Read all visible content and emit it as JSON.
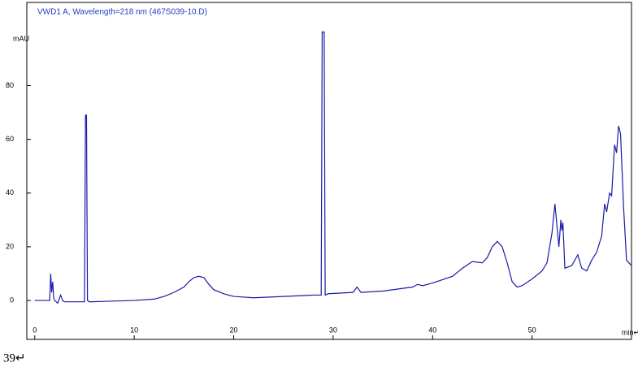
{
  "chart_data": {
    "type": "line",
    "title": "VWD1 A, Wavelength=218 nm (467S039-10.D)",
    "y_label": "mAU",
    "x_label": "min↵",
    "caption": "39↵",
    "x": [
      0,
      1.5,
      1.6,
      1.7,
      1.8,
      1.9,
      2.0,
      2.3,
      2.6,
      2.8,
      3.0,
      5.0,
      5.1,
      5.2,
      5.3,
      5.5,
      10,
      12,
      13,
      14,
      15,
      15.5,
      16,
      16.5,
      17,
      17.5,
      18,
      19,
      20,
      22,
      25,
      28,
      28.8,
      28.9,
      29.0,
      29.1,
      29.2,
      29.5,
      32,
      32.4,
      32.8,
      35,
      38,
      38.5,
      39,
      40,
      42,
      43,
      44,
      45,
      45.5,
      46,
      46.5,
      47,
      47.5,
      48,
      48.5,
      49,
      50,
      51,
      51.5,
      52,
      52.3,
      52.5,
      52.7,
      52.9,
      53.0,
      53.1,
      53.3,
      54,
      54.6,
      55,
      55.5,
      56,
      56.5,
      57,
      57.3,
      57.5,
      57.8,
      58,
      58.3,
      58.5,
      58.7,
      58.9,
      59.2,
      59.5,
      60
    ],
    "series": [
      {
        "name": "VWD1 A",
        "color": "#1a1aa8",
        "values": [
          0,
          0,
          10,
          3,
          7,
          1,
          0,
          -1,
          2,
          0,
          -0.5,
          -0.5,
          69,
          69,
          0,
          -0.5,
          0,
          0.5,
          1.5,
          3,
          5,
          7,
          8.5,
          9,
          8.5,
          6,
          4,
          2.5,
          1.5,
          1,
          1.5,
          2,
          2,
          100,
          100,
          100,
          2,
          2.5,
          3,
          5,
          3,
          3.5,
          5,
          6,
          5.5,
          6.5,
          9,
          12,
          14.5,
          14,
          16,
          20,
          22,
          20,
          14,
          7,
          5,
          5.5,
          8,
          11,
          14,
          25,
          36,
          28,
          20,
          30,
          26,
          29,
          12,
          13,
          17,
          12,
          11,
          15,
          18,
          24,
          36,
          33,
          40,
          39,
          58,
          55,
          65,
          62,
          35,
          15,
          13
        ]
      }
    ],
    "xlim": [
      -0.8,
      60
    ],
    "ylim": [
      -14.5,
      111
    ],
    "xticks": [
      0,
      10,
      20,
      30,
      40,
      50
    ],
    "yticks": [
      0,
      20,
      40,
      60,
      80
    ],
    "grid": false
  }
}
